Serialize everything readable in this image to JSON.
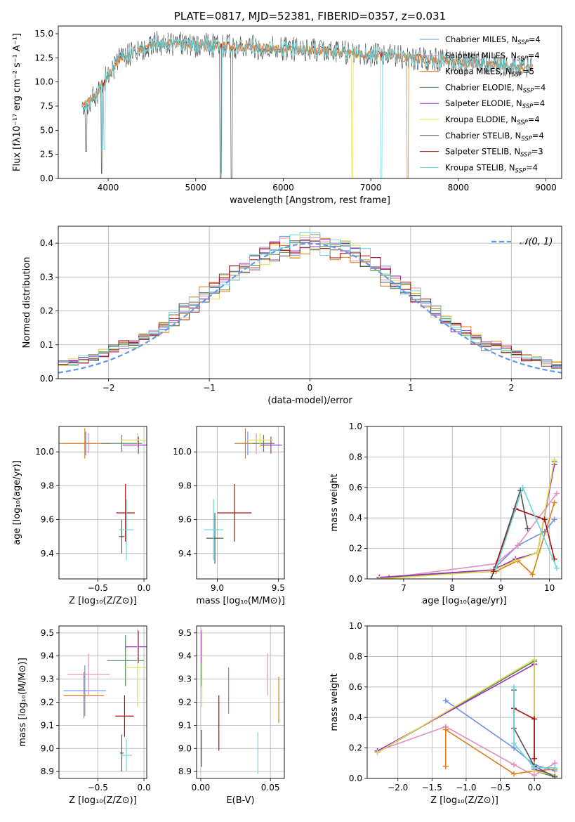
{
  "colors": {
    "chab_miles": "#6e8fe6",
    "salp_miles": "#e38fbf",
    "krou_miles": "#e07b1a",
    "chab_elodie": "#4e8a4e",
    "salp_elodie": "#a02cc0",
    "krou_elodie": "#dddd55",
    "chab_stelib": "#555555",
    "salp_stelib": "#aa1111",
    "krou_stelib": "#6ad8da",
    "normal": "#6495ed",
    "grid": "#b0b0b0"
  },
  "chart_data": [
    {
      "id": "spectrum",
      "type": "line",
      "title": "PLATE=0817, MJD=52381, FIBERID=0357, z=0.031",
      "xlabel": "wavelength [Angstrom, rest frame]",
      "ylabel": "Flux [fλ10⁻¹⁷ erg cm⁻² s⁻¹ A⁻¹]",
      "xlim": [
        3430,
        9180
      ],
      "ylim": [
        0,
        15.8
      ],
      "xticks": [
        4000,
        5000,
        6000,
        7000,
        8000,
        9000
      ],
      "yticks": [
        0.0,
        2.5,
        5.0,
        7.5,
        10.0,
        12.5,
        15.0
      ],
      "x_range_data": [
        3700,
        8850
      ],
      "legend": [
        {
          "main": "Chabrier MILES, N",
          "sub": "SSP",
          "tail": "=4",
          "color_key": "chab_miles"
        },
        {
          "main": "Salpeter MILES, N",
          "sub": "SSP",
          "tail": "=4",
          "color_key": "salp_miles"
        },
        {
          "main": "Kroupa MILES, N",
          "sub": "SSP",
          "tail": "=5",
          "color_key": "krou_miles"
        },
        {
          "main": "Chabrier ELODIE, N",
          "sub": "SSP",
          "tail": "=4",
          "color_key": "chab_elodie"
        },
        {
          "main": "Salpeter ELODIE, N",
          "sub": "SSP",
          "tail": "=4",
          "color_key": "salp_elodie"
        },
        {
          "main": "Kroupa ELODIE, N",
          "sub": "SSP",
          "tail": "=4",
          "color_key": "krou_elodie"
        },
        {
          "main": "Chabrier STELIB, N",
          "sub": "SSP",
          "tail": "=4",
          "color_key": "chab_stelib"
        },
        {
          "main": "Salpeter STELIB, N",
          "sub": "SSP",
          "tail": "=3",
          "color_key": "salp_stelib"
        },
        {
          "main": "Kroupa STELIB, N",
          "sub": "SSP",
          "tail": "=4",
          "color_key": "krou_stelib"
        }
      ]
    },
    {
      "id": "residuals",
      "type": "bar",
      "xlabel": "(data-model)/error",
      "ylabel": "Normed distribution",
      "xlim": [
        -2.5,
        2.5
      ],
      "ylim": [
        0,
        0.45
      ],
      "xticks": [
        -2,
        -1,
        0,
        1,
        2
      ],
      "yticks": [
        0.0,
        0.1,
        0.2,
        0.3,
        0.4
      ],
      "legend_label": "𝒩(0, 1)",
      "bin_width": 0.1
    },
    {
      "id": "age_vs_Z",
      "type": "scatter",
      "xlabel": "Z [log₁₀(Z/Z⊙)]",
      "ylabel": "age  [log₁₀(age/yr)]",
      "xlim": [
        -0.92,
        0.03
      ],
      "ylim": [
        9.25,
        10.15
      ],
      "xticks": [
        -0.5,
        0.0
      ],
      "xticklabels": [
        "−0.5",
        "0.0"
      ],
      "yticks": [
        9.4,
        9.6,
        9.8,
        10.0
      ],
      "points": [
        {
          "key": "chab_miles",
          "x": -0.63,
          "y": 10.05,
          "xerr": 0.27,
          "yerr": 0.07
        },
        {
          "key": "salp_miles",
          "x": -0.6,
          "y": 10.05,
          "xerr": 0.25,
          "yerr": 0.06
        },
        {
          "key": "krou_miles",
          "x": -0.64,
          "y": 10.05,
          "xerr": 0.28,
          "yerr": 0.09
        },
        {
          "key": "chab_elodie",
          "x": -0.24,
          "y": 10.05,
          "xerr": 0.22,
          "yerr": 0.05
        },
        {
          "key": "salp_elodie",
          "x": -0.06,
          "y": 10.04,
          "xerr": 0.17,
          "yerr": 0.05
        },
        {
          "key": "krou_elodie",
          "x": -0.07,
          "y": 10.07,
          "xerr": 0.18,
          "yerr": 0.04
        },
        {
          "key": "chab_stelib",
          "x": -0.24,
          "y": 9.5,
          "xerr": 0.03,
          "yerr": 0.1
        },
        {
          "key": "salp_stelib",
          "x": -0.2,
          "y": 9.64,
          "xerr": 0.1,
          "yerr": 0.17
        },
        {
          "key": "krou_stelib",
          "x": -0.19,
          "y": 9.54,
          "xerr": 0.08,
          "yerr": 0.18
        }
      ]
    },
    {
      "id": "age_vs_mass",
      "type": "scatter",
      "xlabel": "mass [log₁₀(M/M⊙)]",
      "ylabel": "",
      "xlim": [
        8.83,
        9.55
      ],
      "ylim": [
        9.25,
        10.15
      ],
      "xticks": [
        9.0,
        9.5
      ],
      "xticklabels": [
        "9.0",
        "9.5"
      ],
      "yticks": [
        9.4,
        9.6,
        9.8,
        10.0
      ],
      "points": [
        {
          "key": "chab_miles",
          "x": 9.25,
          "y": 10.05,
          "xerr": 0.11,
          "yerr": 0.07
        },
        {
          "key": "salp_miles",
          "x": 9.32,
          "y": 10.05,
          "xerr": 0.1,
          "yerr": 0.06
        },
        {
          "key": "krou_miles",
          "x": 9.23,
          "y": 10.05,
          "xerr": 0.08,
          "yerr": 0.09
        },
        {
          "key": "chab_elodie",
          "x": 9.38,
          "y": 10.05,
          "xerr": 0.09,
          "yerr": 0.05
        },
        {
          "key": "salp_elodie",
          "x": 9.44,
          "y": 10.04,
          "xerr": 0.09,
          "yerr": 0.05
        },
        {
          "key": "krou_elodie",
          "x": 9.35,
          "y": 10.07,
          "xerr": 0.11,
          "yerr": 0.04
        },
        {
          "key": "chab_stelib",
          "x": 8.98,
          "y": 9.49,
          "xerr": 0.07,
          "yerr": 0.15
        },
        {
          "key": "salp_stelib",
          "x": 9.14,
          "y": 9.64,
          "xerr": 0.14,
          "yerr": 0.17
        },
        {
          "key": "krou_stelib",
          "x": 8.97,
          "y": 9.54,
          "xerr": 0.08,
          "yerr": 0.18
        }
      ]
    },
    {
      "id": "weights_vs_age",
      "type": "line",
      "xlabel": "age  [log₁₀(age/yr)]",
      "ylabel": "mass weight",
      "xlim": [
        6.25,
        10.25
      ],
      "ylim": [
        0.0,
        1.0
      ],
      "xticks": [
        7,
        8,
        9,
        10
      ],
      "yticks": [
        0.0,
        0.2,
        0.4,
        0.6,
        0.8,
        1.0
      ],
      "series": [
        {
          "key": "chab_miles",
          "x": [
            8.9,
            9.35,
            9.9,
            10.1
          ],
          "y": [
            0.08,
            0.22,
            0.31,
            0.39
          ]
        },
        {
          "key": "salp_miles",
          "x": [
            6.5,
            8.9,
            9.35,
            10.15
          ],
          "y": [
            0.0,
            0.1,
            0.22,
            0.56
          ]
        },
        {
          "key": "krou_miles",
          "x": [
            6.7,
            8.9,
            9.35,
            9.65,
            10.1
          ],
          "y": [
            0.01,
            0.05,
            0.12,
            0.03,
            0.5
          ]
        },
        {
          "key": "chab_elodie",
          "x": [
            6.5,
            8.8,
            9.3,
            9.75,
            10.1
          ],
          "y": [
            0.01,
            0.05,
            0.13,
            0.17,
            0.77
          ]
        },
        {
          "key": "salp_elodie",
          "x": [
            6.5,
            8.85,
            9.3,
            9.75,
            10.1
          ],
          "y": [
            0.01,
            0.06,
            0.13,
            0.17,
            0.75
          ]
        },
        {
          "key": "krou_elodie",
          "x": [
            6.5,
            8.8,
            9.3,
            9.75,
            10.1
          ],
          "y": [
            0.0,
            0.05,
            0.12,
            0.17,
            0.78
          ]
        },
        {
          "key": "chab_stelib",
          "x": [
            8.8,
            9.4,
            9.55
          ],
          "y": [
            0.0,
            0.58,
            0.33
          ]
        },
        {
          "key": "salp_stelib",
          "x": [
            8.85,
            9.3,
            9.9,
            10.1
          ],
          "y": [
            0.05,
            0.46,
            0.39,
            0.13
          ]
        },
        {
          "key": "krou_stelib",
          "x": [
            8.9,
            9.45,
            10.15
          ],
          "y": [
            0.07,
            0.6,
            0.07
          ]
        }
      ]
    },
    {
      "id": "mass_vs_Z",
      "type": "scatter",
      "xlabel": "Z [log₁₀(Z/Z⊙)]",
      "ylabel": "mass [log₁₀(M/M⊙)]",
      "xlim": [
        -0.92,
        0.03
      ],
      "ylim": [
        8.87,
        9.53
      ],
      "xticks": [
        -0.5,
        0.0
      ],
      "xticklabels": [
        "−0.5",
        "0.0"
      ],
      "yticks": [
        8.9,
        9.0,
        9.1,
        9.2,
        9.3,
        9.4,
        9.5
      ],
      "points": [
        {
          "key": "chab_miles",
          "x": -0.64,
          "y": 9.25,
          "xerr": 0.23,
          "yerr": 0.11
        },
        {
          "key": "salp_miles",
          "x": -0.6,
          "y": 9.32,
          "xerr": 0.23,
          "yerr": 0.09
        },
        {
          "key": "krou_miles",
          "x": -0.65,
          "y": 9.23,
          "xerr": 0.22,
          "yerr": 0.1
        },
        {
          "key": "chab_elodie",
          "x": -0.2,
          "y": 9.38,
          "xerr": 0.2,
          "yerr": 0.11
        },
        {
          "key": "salp_elodie",
          "x": -0.06,
          "y": 9.44,
          "xerr": 0.14,
          "yerr": 0.07
        },
        {
          "key": "krou_elodie",
          "x": -0.07,
          "y": 9.35,
          "xerr": 0.14,
          "yerr": 0.17
        },
        {
          "key": "chab_stelib",
          "x": -0.24,
          "y": 8.98,
          "xerr": 0.02,
          "yerr": 0.08
        },
        {
          "key": "salp_stelib",
          "x": -0.21,
          "y": 9.14,
          "xerr": 0.1,
          "yerr": 0.09
        },
        {
          "key": "krou_stelib",
          "x": -0.19,
          "y": 8.97,
          "xerr": 0.06,
          "yerr": 0.07
        }
      ]
    },
    {
      "id": "mass_vs_ebv",
      "type": "scatter",
      "xlabel": "E(B-V)",
      "ylabel": "",
      "xlim": [
        -0.003,
        0.06
      ],
      "ylim": [
        8.87,
        9.53
      ],
      "xticks": [
        0.0,
        0.05
      ],
      "xticklabels": [
        "0.00",
        "0.05"
      ],
      "yticks": [
        8.9,
        9.0,
        9.1,
        9.2,
        9.3,
        9.4,
        9.5
      ],
      "points": [
        {
          "key": "chab_miles",
          "x": 0.02,
          "y": 9.25,
          "xerr": 0,
          "yerr": 0.1
        },
        {
          "key": "salp_miles",
          "x": 0.048,
          "y": 9.32,
          "xerr": 0,
          "yerr": 0.09
        },
        {
          "key": "krou_miles",
          "x": 0.056,
          "y": 9.21,
          "xerr": 0,
          "yerr": 0.1
        },
        {
          "key": "chab_elodie",
          "x": 0.0005,
          "y": 9.38,
          "xerr": 0,
          "yerr": 0.11
        },
        {
          "key": "salp_elodie",
          "x": 0.0005,
          "y": 9.44,
          "xerr": 0,
          "yerr": 0.07
        },
        {
          "key": "krou_elodie",
          "x": 0.0008,
          "y": 9.35,
          "xerr": 0,
          "yerr": 0.17
        },
        {
          "key": "chab_stelib",
          "x": 0.0005,
          "y": 9.0,
          "xerr": 0,
          "yerr": 0.08
        },
        {
          "key": "salp_stelib",
          "x": 0.013,
          "y": 9.11,
          "xerr": 0,
          "yerr": 0.12
        },
        {
          "key": "krou_stelib",
          "x": 0.041,
          "y": 8.98,
          "xerr": 0,
          "yerr": 0.09
        }
      ]
    },
    {
      "id": "weights_vs_Z",
      "type": "line",
      "xlabel": "Z [log₁₀(Z/Z⊙)]",
      "ylabel": "mass weight",
      "xlim": [
        -2.45,
        0.4
      ],
      "ylim": [
        0.0,
        1.0
      ],
      "xticks": [
        -2.0,
        -1.5,
        -1.0,
        -0.5,
        0.0
      ],
      "xticklabels": [
        "−2.0",
        "−1.5",
        "−1.0",
        "−0.5",
        "0.0"
      ],
      "yticks": [
        0.0,
        0.2,
        0.4,
        0.6,
        0.8,
        1.0
      ],
      "series": [
        {
          "key": "chab_miles",
          "x": [
            -1.3,
            -0.3,
            0.0,
            0.3
          ],
          "y": [
            0.51,
            0.2,
            0.09,
            0.05
          ]
        },
        {
          "key": "salp_miles",
          "x": [
            -2.3,
            -1.3,
            -0.3,
            0.0,
            0.3
          ],
          "y": [
            0.18,
            0.34,
            0.09,
            0.02,
            0.1
          ]
        },
        {
          "key": "krou_miles",
          "x": [
            -1.3,
            -1.3,
            -0.3,
            0.0,
            0.3
          ],
          "y": [
            0.08,
            0.32,
            0.03,
            0.05,
            0.06
          ]
        },
        {
          "key": "chab_elodie",
          "x": [
            -2.3,
            0.0,
            0.0,
            0.3
          ],
          "y": [
            0.17,
            0.77,
            0.05,
            0.01
          ]
        },
        {
          "key": "salp_elodie",
          "x": [
            -2.3,
            0.0,
            0.0,
            0.3
          ],
          "y": [
            0.18,
            0.75,
            0.06,
            0.02
          ]
        },
        {
          "key": "krou_elodie",
          "x": [
            -2.3,
            0.0,
            0.0,
            0.3
          ],
          "y": [
            0.17,
            0.78,
            0.05,
            0.02
          ]
        },
        {
          "key": "chab_stelib",
          "x": [
            -0.3,
            -0.3,
            0.0,
            0.3
          ],
          "y": [
            0.58,
            0.33,
            0.08,
            0.01
          ]
        },
        {
          "key": "salp_stelib",
          "x": [
            -0.3,
            0.0,
            0.0
          ],
          "y": [
            0.46,
            0.39,
            0.13
          ]
        },
        {
          "key": "krou_stelib",
          "x": [
            -0.3,
            -0.3,
            0.0,
            0.3
          ],
          "y": [
            0.6,
            0.23,
            0.07,
            0.07
          ]
        }
      ]
    }
  ]
}
